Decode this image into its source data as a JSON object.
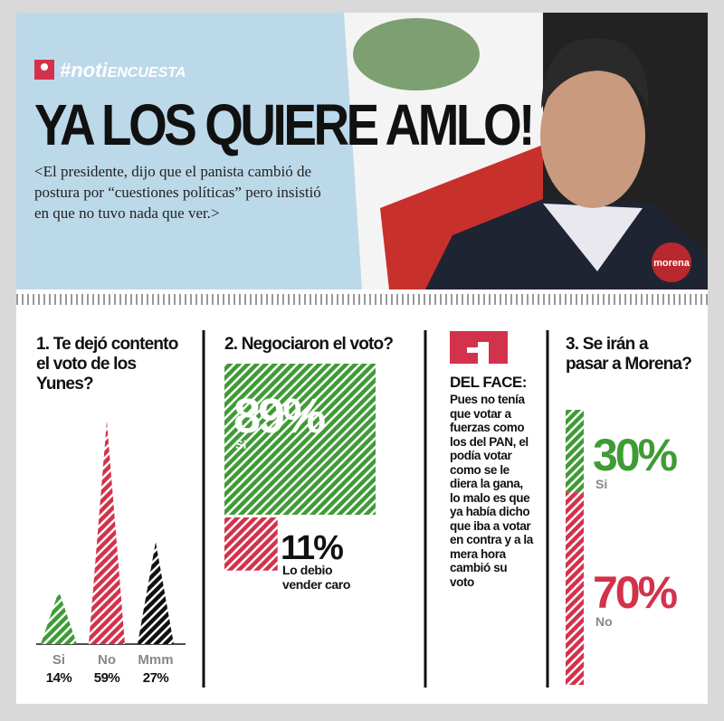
{
  "header": {
    "hashtag_prefix": "#noti",
    "hashtag_suffix": "ENCUESTA",
    "title": "YA LOS QUIERE AMLO!",
    "subtitle": "<El presidente, dijo que el panista cambió de postura por “cuestiones políticas” pero insistió en que no tuvo nada que ver.>",
    "badge": "morena"
  },
  "chart_data": [
    {
      "type": "triangle",
      "title": "1. Te dejó contento el voto de los Yunes?",
      "categories": [
        "Si",
        "No",
        "Mmm"
      ],
      "values": [
        14,
        59,
        27
      ],
      "value_labels": [
        "14%",
        "59%",
        "27%"
      ],
      "colors": [
        "#3f9b35",
        "#d3324c",
        "#111111"
      ]
    },
    {
      "type": "square",
      "title": "2. Negociaron el voto?",
      "categories": [
        "Si",
        "Lo debio vender caro"
      ],
      "values": [
        89,
        11
      ],
      "value_labels": [
        "89%",
        "11%"
      ],
      "colors": [
        "#3f9b35",
        "#d3324c"
      ]
    },
    {
      "type": "stacked",
      "title": "3. Se irán a pasar a Morena?",
      "categories": [
        "Si",
        "No"
      ],
      "values": [
        30,
        70
      ],
      "value_labels": [
        "30%",
        "70%"
      ],
      "colors": [
        "#3f9b35",
        "#d3324c"
      ]
    }
  ],
  "sidebar": {
    "heading": "DEL FACE:",
    "text": "Pues no tenía que votar a fuerzas como los del PAN, el podía votar como se le diera la gana, lo malo es que ya había dicho que iba a votar en contra y a la mera hora cambió su voto"
  }
}
